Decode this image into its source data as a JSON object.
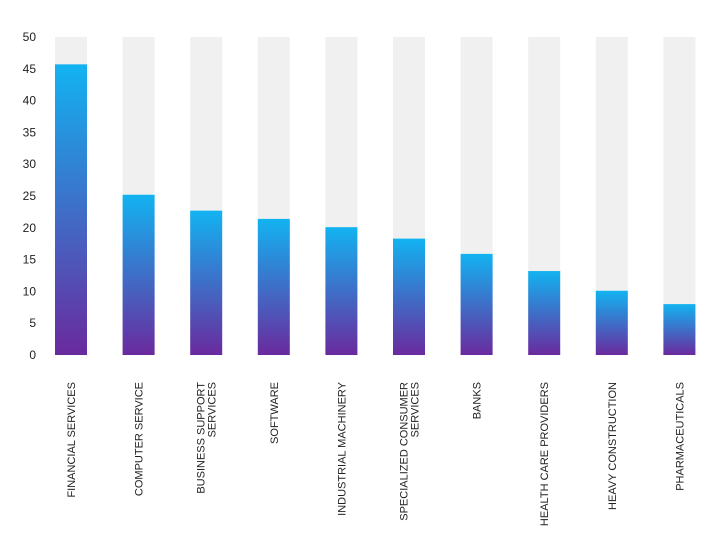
{
  "chart_data": {
    "type": "bar",
    "categories": [
      [
        "FINANCIAL SERVICES"
      ],
      [
        "COMPUTER SERVICE"
      ],
      [
        "BUSINESS SUPPORT",
        "SERVICES"
      ],
      [
        "SOFTWARE"
      ],
      [
        "INDUSTRIAL MACHINERY"
      ],
      [
        "SPECIALIZED CONSUMER",
        "SERVICES"
      ],
      [
        "BANKS"
      ],
      [
        "HEALTH CARE PROVIDERS"
      ],
      [
        "HEAVY CONSTRUCTION"
      ],
      [
        "PHARMACEUTICALS"
      ]
    ],
    "values": [
      45.7,
      25.2,
      22.7,
      21.4,
      20.1,
      18.3,
      15.9,
      13.2,
      10.1,
      8.0
    ],
    "max_value": 50,
    "ylim": [
      0,
      50
    ],
    "yticks": [
      "0",
      "5",
      "10",
      "15",
      "20",
      "25",
      "30",
      "35",
      "40",
      "45",
      "50"
    ],
    "xlabel": "",
    "ylabel": "",
    "title": "",
    "grid": false,
    "background_bar_color": "#f0f0f0",
    "gradient": {
      "top": "#12b3f1",
      "bottom": "#6a2a9e"
    }
  }
}
